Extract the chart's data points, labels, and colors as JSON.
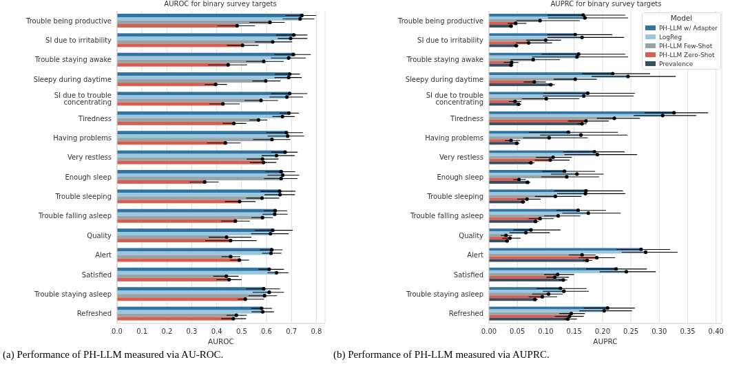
{
  "chart_data": [
    {
      "type": "bar",
      "orientation": "horizontal",
      "title": "AUROC for binary survey targets",
      "xlabel": "AUROC",
      "annotations": [
        "(a) Performance of PH-LLM measured via AU-ROC."
      ],
      "categories": [
        "Trouble being productive",
        "SI due to irritability",
        "Trouble staying awake",
        "Sleepy during daytime",
        "SI due to trouble concentrating",
        "Tiredness",
        "Having problems",
        "Very restless",
        "Enough sleep",
        "Trouble sleeping",
        "Trouble falling asleep",
        "Quality",
        "Alert",
        "Satisfied",
        "Trouble staying asleep",
        "Refreshed"
      ],
      "series": [
        {
          "color": "#3274a1",
          "values": [
            0.742,
            0.71,
            0.708,
            0.693,
            0.693,
            0.69,
            0.68,
            0.675,
            0.659,
            0.653,
            0.635,
            0.625,
            0.621,
            0.611,
            0.589,
            0.58
          ],
          "errors": [
            [
              0.676,
              0.799
            ],
            [
              0.639,
              0.764
            ],
            [
              0.631,
              0.778
            ],
            [
              0.634,
              0.734
            ],
            [
              0.618,
              0.764
            ],
            [
              0.652,
              0.73
            ],
            [
              0.599,
              0.746
            ],
            [
              0.619,
              0.725
            ],
            [
              0.596,
              0.715
            ],
            [
              0.577,
              0.716
            ],
            [
              0.589,
              0.683
            ],
            [
              0.554,
              0.705
            ],
            [
              0.574,
              0.664
            ],
            [
              0.568,
              0.67
            ],
            [
              0.517,
              0.654
            ],
            [
              0.538,
              0.622
            ]
          ]
        },
        {
          "color": "#9ac7e0",
          "values": [
            0.735,
            0.697,
            0.689,
            0.689,
            0.682,
            0.664,
            0.685,
            0.64,
            0.665,
            0.654,
            0.633,
            0.616,
            0.618,
            0.64,
            0.611,
            0.585
          ],
          "errors": [
            [
              0.665,
              0.792
            ],
            [
              0.645,
              0.764
            ],
            [
              0.618,
              0.758
            ],
            [
              0.632,
              0.741
            ],
            [
              0.612,
              0.747
            ],
            [
              0.624,
              0.713
            ],
            [
              0.604,
              0.751
            ],
            [
              0.58,
              0.713
            ],
            [
              0.604,
              0.731
            ],
            [
              0.592,
              0.714
            ],
            [
              0.584,
              0.685
            ],
            [
              0.539,
              0.689
            ],
            [
              0.582,
              0.66
            ],
            [
              0.604,
              0.688
            ],
            [
              0.544,
              0.67
            ],
            [
              0.54,
              0.63
            ]
          ]
        },
        {
          "color": "#97a3a6",
          "values": [
            0.614,
            0.625,
            0.589,
            0.597,
            0.578,
            0.568,
            0.622,
            0.584,
            0.659,
            0.582,
            0.584,
            0.44,
            0.456,
            0.439,
            0.592,
            0.479
          ],
          "errors": [
            [
              0.531,
              0.673
            ],
            [
              0.554,
              0.703
            ],
            [
              0.518,
              0.669
            ],
            [
              0.543,
              0.656
            ],
            [
              0.512,
              0.646
            ],
            [
              0.531,
              0.603
            ],
            [
              0.546,
              0.696
            ],
            [
              0.52,
              0.648
            ],
            [
              0.59,
              0.724
            ],
            [
              0.518,
              0.651
            ],
            [
              0.539,
              0.625
            ],
            [
              0.368,
              0.539
            ],
            [
              0.419,
              0.495
            ],
            [
              0.386,
              0.488
            ],
            [
              0.528,
              0.642
            ],
            [
              0.439,
              0.521
            ]
          ]
        },
        {
          "color": "#d65f50",
          "values": [
            0.482,
            0.504,
            0.446,
            0.396,
            0.425,
            0.469,
            0.435,
            0.588,
            0.352,
            0.492,
            0.475,
            0.456,
            0.491,
            0.45,
            0.515,
            0.467
          ],
          "errors": [
            [
              0.402,
              0.553
            ],
            [
              0.441,
              0.568
            ],
            [
              0.365,
              0.522
            ],
            [
              0.352,
              0.441
            ],
            [
              0.371,
              0.493
            ],
            [
              0.424,
              0.519
            ],
            [
              0.361,
              0.496
            ],
            [
              0.533,
              0.639
            ],
            [
              0.292,
              0.408
            ],
            [
              0.433,
              0.556
            ],
            [
              0.418,
              0.533
            ],
            [
              0.354,
              0.56
            ],
            [
              0.454,
              0.53
            ],
            [
              0.399,
              0.5
            ],
            [
              0.484,
              0.59
            ],
            [
              0.418,
              0.518
            ]
          ]
        }
      ],
      "xlim": [
        0,
        0.835
      ],
      "xticks": [
        {
          "value": 0,
          "label": "0.0"
        },
        {
          "value": 0.1,
          "label": "0.1"
        },
        {
          "value": 0.2,
          "label": "0.2"
        },
        {
          "value": 0.3,
          "label": "0.3"
        },
        {
          "value": 0.4,
          "label": "0.4"
        },
        {
          "value": 0.5,
          "label": "0.5"
        },
        {
          "value": 0.6,
          "label": "0.6"
        },
        {
          "value": 0.7,
          "label": "0.7"
        },
        {
          "value": 0.8,
          "label": "0.8"
        }
      ],
      "grid": "x",
      "marker": "circle"
    },
    {
      "type": "bar",
      "orientation": "horizontal",
      "title": "AUPRC for binary survey targets",
      "xlabel": "AUPRC",
      "legend_title": "Model",
      "legend": "top right",
      "annotations": [
        "(b) Performance of PH-LLM measured via AUPRC."
      ],
      "categories": [
        "Trouble being productive",
        "SI due to irritability",
        "Trouble staying awake",
        "Sleepy during daytime",
        "SI due to trouble concentrating",
        "Tiredness",
        "Having problems",
        "Very restless",
        "Enough sleep",
        "Trouble sleeping",
        "Trouble falling asleep",
        "Quality",
        "Alert",
        "Satisfied",
        "Trouble staying asleep",
        "Refreshed"
      ],
      "series": [
        {
          "name": "PH-LLM w/ Adapter",
          "color": "#3274a1",
          "values": [
            0.166,
            0.152,
            0.158,
            0.218,
            0.174,
            0.326,
            0.14,
            0.186,
            0.133,
            0.171,
            0.157,
            0.074,
            0.268,
            0.224,
            0.126,
            0.209
          ],
          "errors": [
            [
              0.103,
              0.24
            ],
            [
              0.103,
              0.217
            ],
            [
              0.093,
              0.24
            ],
            [
              0.164,
              0.284
            ],
            [
              0.096,
              0.257
            ],
            [
              0.274,
              0.386
            ],
            [
              0.07,
              0.227
            ],
            [
              0.131,
              0.239
            ],
            [
              0.094,
              0.187
            ],
            [
              0.115,
              0.236
            ],
            [
              0.119,
              0.206
            ],
            [
              0.043,
              0.126
            ],
            [
              0.225,
              0.319
            ],
            [
              0.171,
              0.278
            ],
            [
              0.084,
              0.172
            ],
            [
              0.167,
              0.257
            ]
          ]
        },
        {
          "name": "LogReg",
          "color": "#9ac7e0",
          "values": [
            0.169,
            0.164,
            0.155,
            0.245,
            0.167,
            0.306,
            0.162,
            0.191,
            0.155,
            0.17,
            0.175,
            0.065,
            0.276,
            0.242,
            0.132,
            0.203
          ],
          "errors": [
            [
              0.104,
              0.245
            ],
            [
              0.103,
              0.238
            ],
            [
              0.076,
              0.245
            ],
            [
              0.181,
              0.329
            ],
            [
              0.095,
              0.255
            ],
            [
              0.255,
              0.365
            ],
            [
              0.09,
              0.244
            ],
            [
              0.133,
              0.261
            ],
            [
              0.109,
              0.202
            ],
            [
              0.12,
              0.24
            ],
            [
              0.129,
              0.232
            ],
            [
              0.036,
              0.107
            ],
            [
              0.234,
              0.332
            ],
            [
              0.195,
              0.294
            ],
            [
              0.095,
              0.176
            ],
            [
              0.159,
              0.252
            ]
          ]
        },
        {
          "name": "PH-LLM Few-Shot",
          "color": "#97a3a6",
          "values": [
            0.09,
            0.1,
            0.078,
            0.152,
            0.101,
            0.221,
            0.106,
            0.113,
            0.137,
            0.117,
            0.122,
            0.03,
            0.164,
            0.121,
            0.105,
            0.145
          ],
          "errors": [
            [
              0.048,
              0.16
            ],
            [
              0.066,
              0.127
            ],
            [
              0.038,
              0.125
            ],
            [
              0.114,
              0.19
            ],
            [
              0.058,
              0.159
            ],
            [
              0.19,
              0.266
            ],
            [
              0.06,
              0.174
            ],
            [
              0.083,
              0.146
            ],
            [
              0.092,
              0.194
            ],
            [
              0.081,
              0.163
            ],
            [
              0.097,
              0.161
            ],
            [
              0.021,
              0.041
            ],
            [
              0.141,
              0.188
            ],
            [
              0.097,
              0.15
            ],
            [
              0.076,
              0.13
            ],
            [
              0.124,
              0.169
            ]
          ]
        },
        {
          "name": "PH-LLM Zero-Shot",
          "color": "#d65f50",
          "values": [
            0.047,
            0.07,
            0.04,
            0.08,
            0.046,
            0.171,
            0.039,
            0.108,
            0.053,
            0.067,
            0.09,
            0.037,
            0.19,
            0.116,
            0.094,
            0.142
          ],
          "errors": [
            [
              0.033,
              0.066
            ],
            [
              0.048,
              0.111
            ],
            [
              0.026,
              0.052
            ],
            [
              0.061,
              0.1
            ],
            [
              0.035,
              0.057
            ],
            [
              0.139,
              0.211
            ],
            [
              0.028,
              0.055
            ],
            [
              0.081,
              0.142
            ],
            [
              0.043,
              0.065
            ],
            [
              0.05,
              0.091
            ],
            [
              0.07,
              0.114
            ],
            [
              0.023,
              0.056
            ],
            [
              0.158,
              0.222
            ],
            [
              0.101,
              0.141
            ],
            [
              0.07,
              0.12
            ],
            [
              0.116,
              0.167
            ]
          ]
        },
        {
          "name": "Prevalence",
          "color": "#3a4d63",
          "values": [
            0.039,
            0.048,
            0.039,
            0.109,
            0.052,
            0.164,
            0.049,
            0.074,
            0.068,
            0.06,
            0.082,
            0.032,
            0.173,
            0.131,
            0.081,
            0.139
          ],
          "errors": [
            [
              0.035,
              0.042
            ],
            [
              0.044,
              0.052
            ],
            [
              0.035,
              0.043
            ],
            [
              0.104,
              0.116
            ],
            [
              0.048,
              0.057
            ],
            [
              0.156,
              0.172
            ],
            [
              0.046,
              0.054
            ],
            [
              0.069,
              0.08
            ],
            [
              0.064,
              0.073
            ],
            [
              0.055,
              0.064
            ],
            [
              0.079,
              0.088
            ],
            [
              0.028,
              0.035
            ],
            [
              0.166,
              0.182
            ],
            [
              0.123,
              0.138
            ],
            [
              0.077,
              0.086
            ],
            [
              0.132,
              0.155
            ]
          ]
        }
      ],
      "xlim": [
        0,
        0.41
      ],
      "xticks": [
        {
          "value": 0,
          "label": "0.00"
        },
        {
          "value": 0.05,
          "label": "0.05"
        },
        {
          "value": 0.1,
          "label": "0.10"
        },
        {
          "value": 0.15,
          "label": "0.15"
        },
        {
          "value": 0.2,
          "label": "0.20"
        },
        {
          "value": 0.25,
          "label": "0.25"
        },
        {
          "value": 0.3,
          "label": "0.30"
        },
        {
          "value": 0.35,
          "label": "0.35"
        },
        {
          "value": 0.4,
          "label": "0.40"
        }
      ],
      "grid": "x",
      "marker": "circle"
    }
  ]
}
